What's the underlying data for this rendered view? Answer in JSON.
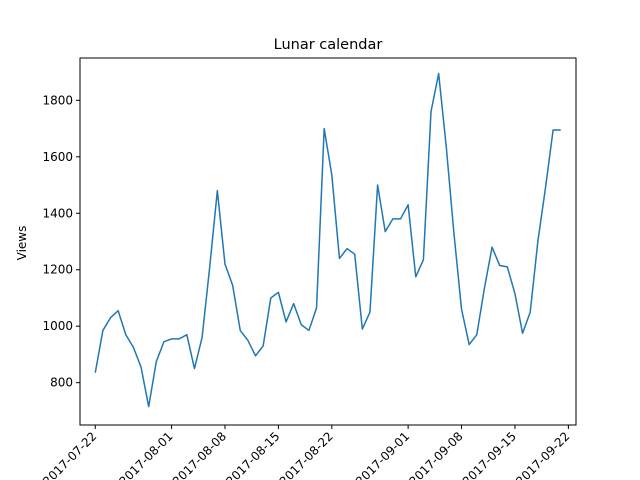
{
  "chart_data": {
    "type": "line",
    "title": "Lunar calendar",
    "xlabel": "",
    "ylabel": "Views",
    "x_ticks": [
      "2017-07-22",
      "2017-08-01",
      "2017-08-08",
      "2017-08-15",
      "2017-08-22",
      "2017-09-01",
      "2017-09-08",
      "2017-09-15",
      "2017-09-22"
    ],
    "y_ticks": [
      800,
      1000,
      1200,
      1400,
      1600,
      1800
    ],
    "xlim": [
      "2017-07-20",
      "2017-09-23"
    ],
    "ylim": [
      650,
      1950
    ],
    "grid": false,
    "series": [
      {
        "color": "#1f77b4",
        "x": [
          "2017-07-22",
          "2017-07-23",
          "2017-07-24",
          "2017-07-25",
          "2017-07-26",
          "2017-07-27",
          "2017-07-28",
          "2017-07-29",
          "2017-07-30",
          "2017-07-31",
          "2017-08-01",
          "2017-08-02",
          "2017-08-03",
          "2017-08-04",
          "2017-08-05",
          "2017-08-06",
          "2017-08-07",
          "2017-08-08",
          "2017-08-09",
          "2017-08-10",
          "2017-08-11",
          "2017-08-12",
          "2017-08-13",
          "2017-08-14",
          "2017-08-15",
          "2017-08-16",
          "2017-08-17",
          "2017-08-18",
          "2017-08-19",
          "2017-08-20",
          "2017-08-21",
          "2017-08-22",
          "2017-08-23",
          "2017-08-24",
          "2017-08-25",
          "2017-08-26",
          "2017-08-27",
          "2017-08-28",
          "2017-08-29",
          "2017-08-30",
          "2017-08-31",
          "2017-09-01",
          "2017-09-02",
          "2017-09-03",
          "2017-09-04",
          "2017-09-05",
          "2017-09-06",
          "2017-09-07",
          "2017-09-08",
          "2017-09-09",
          "2017-09-10",
          "2017-09-11",
          "2017-09-12",
          "2017-09-13",
          "2017-09-14",
          "2017-09-15",
          "2017-09-16",
          "2017-09-17",
          "2017-09-18",
          "2017-09-19",
          "2017-09-20",
          "2017-09-21"
        ],
        "values": [
          835,
          985,
          1030,
          1055,
          970,
          925,
          855,
          715,
          875,
          945,
          955,
          955,
          970,
          850,
          960,
          1210,
          1480,
          1220,
          1145,
          985,
          950,
          895,
          930,
          1100,
          1120,
          1015,
          1080,
          1005,
          985,
          1065,
          1700,
          1535,
          1240,
          1275,
          1255,
          990,
          1050,
          1500,
          1335,
          1380,
          1380,
          1430,
          1175,
          1235,
          1760,
          1895,
          1635,
          1330,
          1060,
          935,
          970,
          1135,
          1280,
          1215,
          1210,
          1115,
          975,
          1050,
          1300,
          1490,
          1695,
          1695
        ]
      }
    ]
  }
}
